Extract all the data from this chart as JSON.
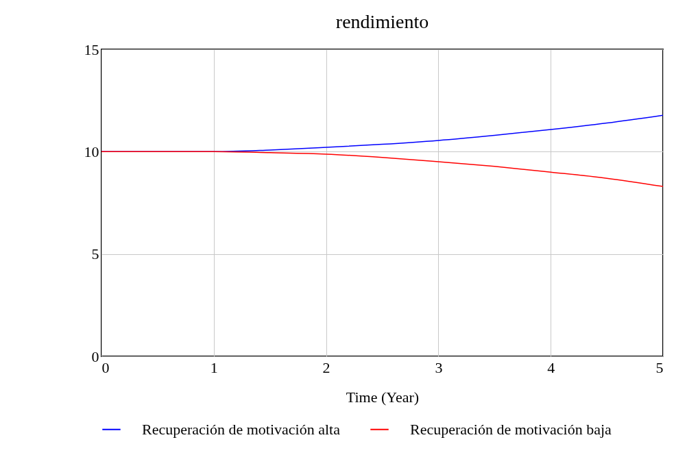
{
  "chart_data": {
    "type": "line",
    "title": "rendimiento",
    "xlabel": "Time (Year)",
    "x": [
      0,
      0.5,
      1,
      1.5,
      2,
      2.5,
      3,
      3.5,
      4,
      4.5,
      5
    ],
    "series": [
      {
        "name": "Recuperación de motivación alta",
        "color": "#0000ff",
        "values": [
          10,
          10,
          10,
          10.08,
          10.21,
          10.36,
          10.55,
          10.8,
          11.08,
          11.4,
          11.78
        ]
      },
      {
        "name": "Recuperación de motivación baja",
        "color": "#ff0000",
        "values": [
          10,
          10,
          10,
          9.95,
          9.88,
          9.72,
          9.51,
          9.28,
          9.0,
          8.7,
          8.3
        ]
      }
    ],
    "xlim": [
      0,
      5
    ],
    "xticks": [
      0,
      1,
      2,
      3,
      4,
      5
    ],
    "ylim": [
      0,
      15
    ],
    "yticks": [
      0,
      5,
      10,
      15
    ],
    "grid": true,
    "legend": "bottom",
    "marker": "none",
    "line_style": "solid"
  }
}
